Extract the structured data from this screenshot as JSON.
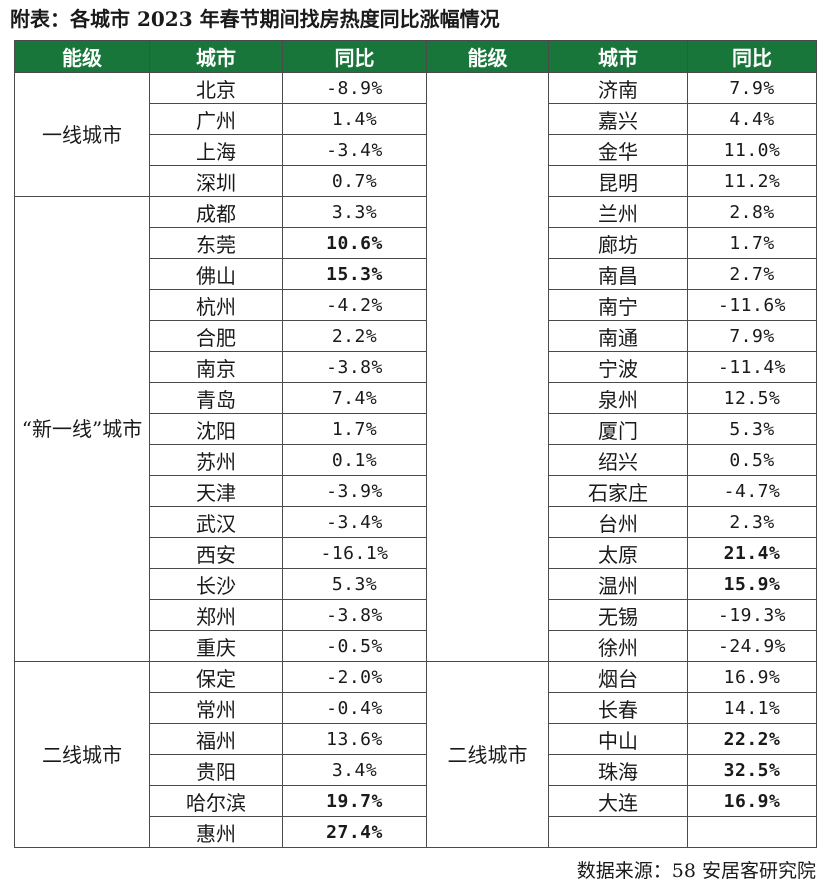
{
  "title": "附表：各城市 2023 年春节期间找房热度同比涨幅情况",
  "columns": [
    "能级",
    "城市",
    "同比",
    "能级",
    "城市",
    "同比"
  ],
  "left": {
    "groups": [
      {
        "tier": "一线城市",
        "rows": [
          {
            "city": "北京",
            "yoy": "-8.9%",
            "bold": false
          },
          {
            "city": "广州",
            "yoy": "1.4%",
            "bold": false
          },
          {
            "city": "上海",
            "yoy": "-3.4%",
            "bold": false
          },
          {
            "city": "深圳",
            "yoy": "0.7%",
            "bold": false
          }
        ]
      },
      {
        "tier": "“新一线”城市",
        "rows": [
          {
            "city": "成都",
            "yoy": "3.3%",
            "bold": false
          },
          {
            "city": "东莞",
            "yoy": "10.6%",
            "bold": true
          },
          {
            "city": "佛山",
            "yoy": "15.3%",
            "bold": true
          },
          {
            "city": "杭州",
            "yoy": "-4.2%",
            "bold": false
          },
          {
            "city": "合肥",
            "yoy": "2.2%",
            "bold": false
          },
          {
            "city": "南京",
            "yoy": "-3.8%",
            "bold": false
          },
          {
            "city": "青岛",
            "yoy": "7.4%",
            "bold": false
          },
          {
            "city": "沈阳",
            "yoy": "1.7%",
            "bold": false
          },
          {
            "city": "苏州",
            "yoy": "0.1%",
            "bold": false
          },
          {
            "city": "天津",
            "yoy": "-3.9%",
            "bold": false
          },
          {
            "city": "武汉",
            "yoy": "-3.4%",
            "bold": false
          },
          {
            "city": "西安",
            "yoy": "-16.1%",
            "bold": false
          },
          {
            "city": "长沙",
            "yoy": "5.3%",
            "bold": false
          },
          {
            "city": "郑州",
            "yoy": "-3.8%",
            "bold": false
          },
          {
            "city": "重庆",
            "yoy": "-0.5%",
            "bold": false
          }
        ]
      },
      {
        "tier": "二线城市",
        "rows": [
          {
            "city": "保定",
            "yoy": "-2.0%",
            "bold": false
          },
          {
            "city": "常州",
            "yoy": "-0.4%",
            "bold": false
          },
          {
            "city": "福州",
            "yoy": "13.6%",
            "bold": false
          },
          {
            "city": "贵阳",
            "yoy": "3.4%",
            "bold": false
          },
          {
            "city": "哈尔滨",
            "yoy": "19.7%",
            "bold": true
          },
          {
            "city": "惠州",
            "yoy": "27.4%",
            "bold": true
          }
        ]
      }
    ]
  },
  "right": {
    "groups": [
      {
        "tier": "",
        "rows": [
          {
            "city": "济南",
            "yoy": "7.9%",
            "bold": false
          },
          {
            "city": "嘉兴",
            "yoy": "4.4%",
            "bold": false
          },
          {
            "city": "金华",
            "yoy": "11.0%",
            "bold": false
          },
          {
            "city": "昆明",
            "yoy": "11.2%",
            "bold": false
          },
          {
            "city": "兰州",
            "yoy": "2.8%",
            "bold": false
          },
          {
            "city": "廊坊",
            "yoy": "1.7%",
            "bold": false
          },
          {
            "city": "南昌",
            "yoy": "2.7%",
            "bold": false
          },
          {
            "city": "南宁",
            "yoy": "-11.6%",
            "bold": false
          },
          {
            "city": "南通",
            "yoy": "7.9%",
            "bold": false
          },
          {
            "city": "宁波",
            "yoy": "-11.4%",
            "bold": false
          },
          {
            "city": "泉州",
            "yoy": "12.5%",
            "bold": false
          },
          {
            "city": "厦门",
            "yoy": "5.3%",
            "bold": false
          },
          {
            "city": "绍兴",
            "yoy": "0.5%",
            "bold": false
          },
          {
            "city": "石家庄",
            "yoy": "-4.7%",
            "bold": false
          },
          {
            "city": "台州",
            "yoy": "2.3%",
            "bold": false
          },
          {
            "city": "太原",
            "yoy": "21.4%",
            "bold": true
          },
          {
            "city": "温州",
            "yoy": "15.9%",
            "bold": true
          },
          {
            "city": "无锡",
            "yoy": "-19.3%",
            "bold": false
          },
          {
            "city": "徐州",
            "yoy": "-24.9%",
            "bold": false
          }
        ]
      },
      {
        "tier": "二线城市",
        "rows": [
          {
            "city": "烟台",
            "yoy": "16.9%",
            "bold": false
          },
          {
            "city": "长春",
            "yoy": "14.1%",
            "bold": false
          },
          {
            "city": "中山",
            "yoy": "22.2%",
            "bold": true
          },
          {
            "city": "珠海",
            "yoy": "32.5%",
            "bold": true
          },
          {
            "city": "大连",
            "yoy": "16.9%",
            "bold": true
          },
          {
            "city": "",
            "yoy": "",
            "bold": false
          }
        ]
      }
    ]
  },
  "source": "数据来源：58 安居客研究院",
  "colors": {
    "header_bg": "#18763b",
    "header_text": "#ffffff",
    "border": "#4b4b4b"
  }
}
